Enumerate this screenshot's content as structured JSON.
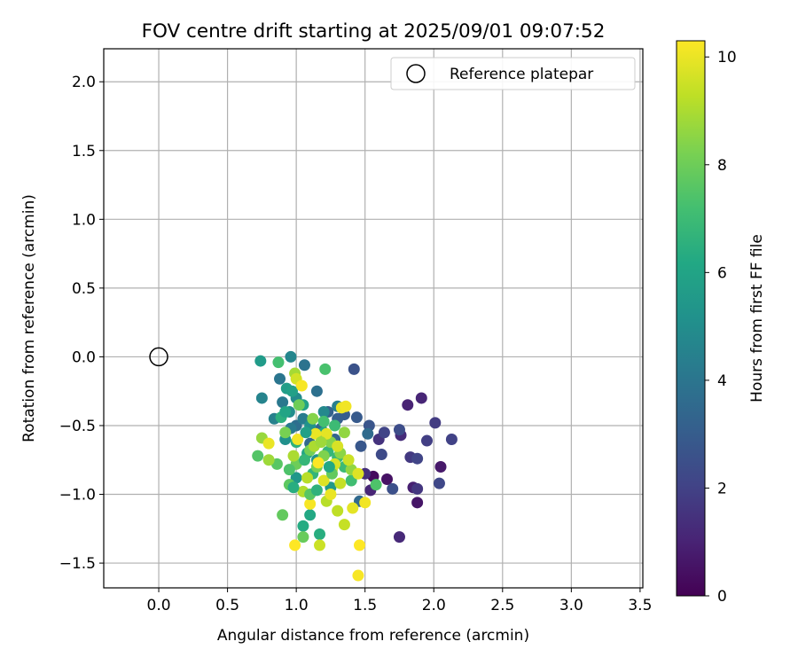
{
  "chart_data": {
    "type": "scatter",
    "title": "FOV centre drift starting at 2025/09/01 09:07:52",
    "xlabel": "Angular distance from reference (arcmin)",
    "ylabel": "Rotation from reference (arcmin)",
    "colorbar_label": "Hours from first FF file",
    "xlim": [
      -0.4,
      3.52
    ],
    "ylim": [
      -1.68,
      2.24
    ],
    "xticks": [
      0.0,
      0.5,
      1.0,
      1.5,
      2.0,
      2.5,
      3.0,
      3.5
    ],
    "xtick_labels": [
      "0.0",
      "0.5",
      "1.0",
      "1.5",
      "2.0",
      "2.5",
      "3.0",
      "3.5"
    ],
    "yticks": [
      -1.5,
      -1.0,
      -0.5,
      0.0,
      0.5,
      1.0,
      1.5,
      2.0
    ],
    "ytick_labels": [
      "−1.5",
      "−1.0",
      "−0.5",
      "0.0",
      "0.5",
      "1.0",
      "1.5",
      "2.0"
    ],
    "clim": [
      0,
      10.3
    ],
    "cticks": [
      0,
      2,
      4,
      6,
      8,
      10
    ],
    "ctick_labels": [
      "0",
      "2",
      "4",
      "6",
      "8",
      "10"
    ],
    "colormap": "viridis",
    "grid": true,
    "legend": {
      "location": "upper right",
      "entries": [
        "Reference platepar"
      ]
    },
    "reference": {
      "x": 0.0,
      "y": 0.0
    },
    "series": [
      {
        "name": "FOV centre",
        "points": [
          [
            1.56,
            -0.87,
            0.3
          ],
          [
            1.66,
            -0.89,
            0.5
          ],
          [
            1.88,
            -1.06,
            0.6
          ],
          [
            2.05,
            -0.8,
            0.7
          ],
          [
            1.85,
            -0.95,
            0.9
          ],
          [
            1.81,
            -0.35,
            1.0
          ],
          [
            1.91,
            -0.3,
            1.1
          ],
          [
            1.75,
            -1.31,
            1.2
          ],
          [
            1.76,
            -0.57,
            1.3
          ],
          [
            1.54,
            -0.97,
            1.1
          ],
          [
            1.5,
            -0.85,
            1.4
          ],
          [
            1.6,
            -0.6,
            1.5
          ],
          [
            1.88,
            -0.96,
            1.6
          ],
          [
            1.83,
            -0.73,
            1.7
          ],
          [
            2.01,
            -0.48,
            1.8
          ],
          [
            1.95,
            -0.61,
            1.9
          ],
          [
            2.13,
            -0.6,
            2.0
          ],
          [
            1.88,
            -0.74,
            2.1
          ],
          [
            2.04,
            -0.92,
            2.2
          ],
          [
            1.62,
            -0.71,
            2.3
          ],
          [
            1.64,
            -0.55,
            2.1
          ],
          [
            1.75,
            -0.53,
            2.4
          ],
          [
            1.7,
            -0.96,
            2.5
          ],
          [
            1.42,
            -0.09,
            2.6
          ],
          [
            1.53,
            -0.5,
            2.7
          ],
          [
            1.47,
            -0.65,
            2.8
          ],
          [
            1.44,
            -0.44,
            2.9
          ],
          [
            1.35,
            -0.42,
            3.0
          ],
          [
            1.3,
            -0.45,
            3.1
          ],
          [
            1.23,
            -0.4,
            3.2
          ],
          [
            1.28,
            -0.6,
            3.3
          ],
          [
            1.18,
            -0.52,
            3.4
          ],
          [
            1.1,
            -0.63,
            3.5
          ],
          [
            1.52,
            -0.56,
            3.6
          ],
          [
            1.46,
            -1.05,
            3.5
          ],
          [
            1.0,
            -0.5,
            3.7
          ],
          [
            1.15,
            -0.25,
            3.8
          ],
          [
            1.06,
            -0.06,
            3.9
          ],
          [
            0.88,
            -0.16,
            4.0
          ],
          [
            0.9,
            -0.33,
            4.1
          ],
          [
            0.96,
            -0.52,
            4.2
          ],
          [
            1.05,
            -0.45,
            4.3
          ],
          [
            1.3,
            -0.36,
            4.4
          ],
          [
            0.84,
            -0.45,
            4.5
          ],
          [
            0.75,
            -0.3,
            4.6
          ],
          [
            0.96,
            0.0,
            4.7
          ],
          [
            1.2,
            -0.4,
            4.8
          ],
          [
            1.0,
            -0.3,
            4.9
          ],
          [
            0.95,
            -0.4,
            5.0
          ],
          [
            0.92,
            -0.6,
            5.1
          ],
          [
            1.1,
            -0.5,
            5.2
          ],
          [
            1.15,
            -0.75,
            5.3
          ],
          [
            1.0,
            -0.88,
            5.4
          ],
          [
            1.25,
            -0.95,
            5.5
          ],
          [
            0.74,
            -0.03,
            5.6
          ],
          [
            0.93,
            -0.23,
            5.7
          ],
          [
            0.97,
            -0.25,
            5.8
          ],
          [
            1.05,
            -0.35,
            5.9
          ],
          [
            1.2,
            -0.55,
            6.0
          ],
          [
            1.08,
            -0.7,
            6.1
          ],
          [
            1.1,
            -1.15,
            6.2
          ],
          [
            1.05,
            -1.23,
            6.3
          ],
          [
            1.17,
            -1.29,
            6.4
          ],
          [
            0.89,
            -0.44,
            6.5
          ],
          [
            1.0,
            -0.62,
            6.6
          ],
          [
            1.12,
            -0.85,
            6.7
          ],
          [
            1.23,
            -0.69,
            6.8
          ],
          [
            1.3,
            -0.73,
            6.9
          ],
          [
            1.35,
            -0.8,
            7.0
          ],
          [
            1.4,
            -0.9,
            7.1
          ],
          [
            0.87,
            -0.04,
            7.2
          ],
          [
            1.21,
            -0.09,
            7.3
          ],
          [
            1.58,
            -0.93,
            7.4
          ],
          [
            0.72,
            -0.72,
            7.5
          ],
          [
            0.86,
            -0.78,
            7.6
          ],
          [
            0.95,
            -0.93,
            7.7
          ],
          [
            0.9,
            -1.15,
            7.8
          ],
          [
            1.05,
            -1.31,
            7.9
          ],
          [
            1.0,
            -0.78,
            8.0
          ],
          [
            1.1,
            -0.68,
            8.1
          ],
          [
            1.15,
            -0.8,
            8.2
          ],
          [
            1.2,
            -0.72,
            8.3
          ],
          [
            1.25,
            -0.62,
            8.4
          ],
          [
            1.32,
            -0.7,
            8.5
          ],
          [
            1.4,
            -0.82,
            8.6
          ],
          [
            0.75,
            -0.59,
            8.7
          ],
          [
            0.8,
            -0.75,
            8.8
          ],
          [
            0.99,
            -0.12,
            8.9
          ],
          [
            1.13,
            -0.65,
            9.0
          ],
          [
            1.05,
            -0.98,
            9.1
          ],
          [
            1.22,
            -1.05,
            9.2
          ],
          [
            1.3,
            -1.12,
            9.3
          ],
          [
            1.35,
            -1.22,
            9.4
          ],
          [
            1.17,
            -1.37,
            9.5
          ],
          [
            1.0,
            -0.16,
            9.6
          ],
          [
            1.28,
            -0.78,
            9.7
          ],
          [
            1.45,
            -0.85,
            9.8
          ],
          [
            1.41,
            -1.1,
            9.9
          ],
          [
            1.33,
            -0.37,
            10.0
          ],
          [
            1.36,
            -0.36,
            10.1
          ],
          [
            1.04,
            -0.21,
            10.2
          ],
          [
            0.99,
            -1.37,
            10.3
          ],
          [
            1.45,
            -1.59,
            10.2
          ],
          [
            1.46,
            -1.37,
            10.3
          ],
          [
            1.5,
            -1.06,
            10.1
          ],
          [
            1.14,
            -0.56,
            10.0
          ],
          [
            1.22,
            -0.56,
            9.9
          ],
          [
            1.3,
            -0.65,
            9.7
          ],
          [
            1.38,
            -0.75,
            9.5
          ],
          [
            1.2,
            -0.9,
            9.8
          ],
          [
            1.25,
            -1.0,
            10.0
          ],
          [
            1.1,
            -1.07,
            10.2
          ],
          [
            1.01,
            -0.6,
            10.1
          ],
          [
            0.8,
            -0.63,
            10.0
          ],
          [
            1.16,
            -0.77,
            10.3
          ],
          [
            1.26,
            -0.82,
            9.6
          ],
          [
            1.32,
            -0.92,
            9.4
          ],
          [
            1.08,
            -0.88,
            9.2
          ],
          [
            0.98,
            -0.72,
            9.0
          ],
          [
            1.18,
            -0.62,
            8.8
          ],
          [
            1.35,
            -0.55,
            8.6
          ],
          [
            1.12,
            -0.45,
            8.4
          ],
          [
            0.92,
            -0.55,
            8.2
          ],
          [
            1.02,
            -0.35,
            8.0
          ],
          [
            1.26,
            -0.85,
            7.8
          ],
          [
            1.1,
            -1.0,
            7.6
          ],
          [
            0.95,
            -0.82,
            7.4
          ],
          [
            1.2,
            -0.47,
            7.2
          ],
          [
            1.28,
            -0.5,
            7.0
          ],
          [
            1.06,
            -0.75,
            6.8
          ],
          [
            1.15,
            -0.97,
            6.6
          ],
          [
            0.98,
            -0.95,
            6.4
          ],
          [
            1.24,
            -0.8,
            6.2
          ],
          [
            0.92,
            -0.4,
            6.0
          ],
          [
            1.07,
            -0.55,
            5.8
          ]
        ]
      }
    ]
  }
}
